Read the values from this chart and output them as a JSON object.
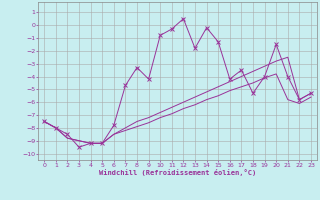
{
  "xlabel": "Windchill (Refroidissement éolien,°C)",
  "bg_color": "#c8eef0",
  "grid_color": "#aaaaaa",
  "line_color": "#993399",
  "ylim": [
    -10.5,
    1.8
  ],
  "xlim": [
    -0.5,
    23.5
  ],
  "yticks": [
    1,
    0,
    -1,
    -2,
    -3,
    -4,
    -5,
    -6,
    -7,
    -8,
    -9,
    -10
  ],
  "xticks": [
    0,
    1,
    2,
    3,
    4,
    5,
    6,
    7,
    8,
    9,
    10,
    11,
    12,
    13,
    14,
    15,
    16,
    17,
    18,
    19,
    20,
    21,
    22,
    23
  ],
  "line1_x": [
    0,
    1,
    2,
    3,
    4,
    5,
    6,
    7,
    8,
    9,
    10,
    11,
    12,
    13,
    14,
    15,
    16,
    17,
    18,
    19,
    20,
    21,
    22,
    23
  ],
  "line1_y": [
    -7.5,
    -8.0,
    -8.5,
    -9.5,
    -9.2,
    -9.2,
    -7.8,
    -4.7,
    -3.3,
    -4.2,
    -0.8,
    -0.3,
    0.5,
    -1.8,
    -0.2,
    -1.3,
    -4.2,
    -3.5,
    -5.3,
    -4.0,
    -1.5,
    -4.0,
    -5.8,
    -5.3
  ],
  "line2_x": [
    0,
    1,
    2,
    3,
    4,
    5,
    6,
    7,
    8,
    9,
    10,
    11,
    12,
    13,
    14,
    15,
    16,
    17,
    18,
    19,
    20,
    21,
    22,
    23
  ],
  "line2_y": [
    -7.5,
    -8.0,
    -8.8,
    -9.0,
    -9.2,
    -9.2,
    -8.5,
    -8.0,
    -7.5,
    -7.2,
    -6.8,
    -6.4,
    -6.0,
    -5.6,
    -5.2,
    -4.8,
    -4.4,
    -4.0,
    -3.6,
    -3.2,
    -2.8,
    -2.5,
    -5.8,
    -5.3
  ],
  "line3_x": [
    0,
    1,
    2,
    3,
    4,
    5,
    6,
    7,
    8,
    9,
    10,
    11,
    12,
    13,
    14,
    15,
    16,
    17,
    18,
    19,
    20,
    21,
    22,
    23
  ],
  "line3_y": [
    -7.5,
    -8.0,
    -8.8,
    -9.0,
    -9.2,
    -9.2,
    -8.5,
    -8.2,
    -7.9,
    -7.6,
    -7.2,
    -6.9,
    -6.5,
    -6.2,
    -5.8,
    -5.5,
    -5.1,
    -4.8,
    -4.5,
    -4.1,
    -3.8,
    -5.8,
    -6.1,
    -5.6
  ]
}
